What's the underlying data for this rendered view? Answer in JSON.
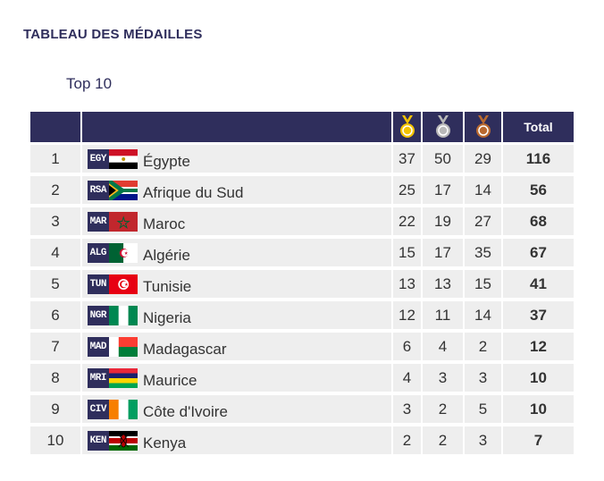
{
  "header": {
    "title": "TABLEAU DES MÉDAILLES",
    "subtitle": "Top 10"
  },
  "table": {
    "total_label": "Total",
    "medal_icons": [
      "gold-medal-icon",
      "silver-medal-icon",
      "bronze-medal-icon"
    ],
    "rows": [
      {
        "rank": "1",
        "code": "EGY",
        "flag": "egypt-flag-icon",
        "name": "Égypte",
        "gold": "37",
        "silver": "50",
        "bronze": "29",
        "total": "116"
      },
      {
        "rank": "2",
        "code": "RSA",
        "flag": "south-africa-flag-icon",
        "name": "Afrique du Sud",
        "gold": "25",
        "silver": "17",
        "bronze": "14",
        "total": "56"
      },
      {
        "rank": "3",
        "code": "MAR",
        "flag": "morocco-flag-icon",
        "name": "Maroc",
        "gold": "22",
        "silver": "19",
        "bronze": "27",
        "total": "68"
      },
      {
        "rank": "4",
        "code": "ALG",
        "flag": "algeria-flag-icon",
        "name": "Algérie",
        "gold": "15",
        "silver": "17",
        "bronze": "35",
        "total": "67"
      },
      {
        "rank": "5",
        "code": "TUN",
        "flag": "tunisia-flag-icon",
        "name": "Tunisie",
        "gold": "13",
        "silver": "13",
        "bronze": "15",
        "total": "41"
      },
      {
        "rank": "6",
        "code": "NGR",
        "flag": "nigeria-flag-icon",
        "name": "Nigeria",
        "gold": "12",
        "silver": "11",
        "bronze": "14",
        "total": "37"
      },
      {
        "rank": "7",
        "code": "MAD",
        "flag": "madagascar-flag-icon",
        "name": "Madagascar",
        "gold": "6",
        "silver": "4",
        "bronze": "2",
        "total": "12"
      },
      {
        "rank": "8",
        "code": "MRI",
        "flag": "mauritius-flag-icon",
        "name": "Maurice",
        "gold": "4",
        "silver": "3",
        "bronze": "3",
        "total": "10"
      },
      {
        "rank": "9",
        "code": "CIV",
        "flag": "ivory-coast-flag-icon",
        "name": "Côte d'Ivoire",
        "gold": "3",
        "silver": "2",
        "bronze": "5",
        "total": "10"
      },
      {
        "rank": "10",
        "code": "KEN",
        "flag": "kenya-flag-icon",
        "name": "Kenya",
        "gold": "2",
        "silver": "2",
        "bronze": "3",
        "total": "7"
      }
    ]
  },
  "colors": {
    "header_bg": "#2f2e5c",
    "row_bg": "#eeeeee",
    "gold": "#f2c200",
    "silver": "#b8b8b8",
    "bronze": "#b9692f"
  }
}
